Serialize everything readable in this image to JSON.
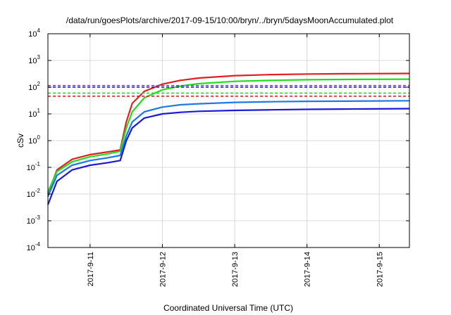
{
  "chart_data": {
    "type": "line",
    "title": "/data/run/goesPlots/archive/2017-09-15/10:00/bryn/../bryn/5daysMoonAccumulated.plot",
    "xlabel": "Coordinated Universal Time (UTC)",
    "ylabel": "cSv",
    "yscale": "log",
    "ylim_exponents": [
      -4,
      4
    ],
    "y_tick_labels": [
      {
        "base": "10",
        "exp": "-4"
      },
      {
        "base": "10",
        "exp": "-3"
      },
      {
        "base": "10",
        "exp": "-2"
      },
      {
        "base": "10",
        "exp": "-1"
      },
      {
        "base": "10",
        "exp": "0"
      },
      {
        "base": "10",
        "exp": "1"
      },
      {
        "base": "10",
        "exp": "2"
      },
      {
        "base": "10",
        "exp": "3"
      },
      {
        "base": "10",
        "exp": "4"
      }
    ],
    "x_tick_labels": [
      "2017-9-11",
      "2017-9-12",
      "2017-9-13",
      "2017-9-14",
      "2017-9-15"
    ],
    "xlim": [
      "2017-09-10 10:00",
      "2017-09-15 10:00"
    ],
    "grid": true,
    "series": [
      {
        "color": "#e02020",
        "style": "solid",
        "points": [
          [
            "2017-09-10 10:00",
            0.01
          ],
          [
            "2017-09-10 13:00",
            0.08
          ],
          [
            "2017-09-10 18:00",
            0.2
          ],
          [
            "2017-09-11 00:00",
            0.3
          ],
          [
            "2017-09-11 06:00",
            0.38
          ],
          [
            "2017-09-11 10:00",
            0.45
          ],
          [
            "2017-09-11 12:00",
            5
          ],
          [
            "2017-09-11 14:00",
            25
          ],
          [
            "2017-09-11 18:00",
            70
          ],
          [
            "2017-09-12 00:00",
            130
          ],
          [
            "2017-09-12 06:00",
            180
          ],
          [
            "2017-09-12 12:00",
            220
          ],
          [
            "2017-09-13 00:00",
            270
          ],
          [
            "2017-09-13 12:00",
            295
          ],
          [
            "2017-09-14 00:00",
            310
          ],
          [
            "2017-09-14 12:00",
            318
          ],
          [
            "2017-09-15 10:00",
            325
          ]
        ]
      },
      {
        "color": "#20dd20",
        "style": "solid",
        "points": [
          [
            "2017-09-10 10:00",
            0.012
          ],
          [
            "2017-09-10 13:00",
            0.07
          ],
          [
            "2017-09-10 18:00",
            0.16
          ],
          [
            "2017-09-11 00:00",
            0.25
          ],
          [
            "2017-09-11 06:00",
            0.32
          ],
          [
            "2017-09-11 10:00",
            0.4
          ],
          [
            "2017-09-11 12:00",
            3
          ],
          [
            "2017-09-11 14:00",
            12
          ],
          [
            "2017-09-11 18:00",
            40
          ],
          [
            "2017-09-12 00:00",
            80
          ],
          [
            "2017-09-12 06:00",
            110
          ],
          [
            "2017-09-12 12:00",
            135
          ],
          [
            "2017-09-13 00:00",
            165
          ],
          [
            "2017-09-13 12:00",
            180
          ],
          [
            "2017-09-14 00:00",
            190
          ],
          [
            "2017-09-14 12:00",
            195
          ],
          [
            "2017-09-15 10:00",
            200
          ]
        ]
      },
      {
        "color": "#1e78e6",
        "style": "solid",
        "points": [
          [
            "2017-09-10 10:00",
            0.008
          ],
          [
            "2017-09-10 13:00",
            0.05
          ],
          [
            "2017-09-10 18:00",
            0.12
          ],
          [
            "2017-09-11 00:00",
            0.18
          ],
          [
            "2017-09-11 06:00",
            0.23
          ],
          [
            "2017-09-11 10:00",
            0.28
          ],
          [
            "2017-09-11 12:00",
            1.5
          ],
          [
            "2017-09-11 14:00",
            5
          ],
          [
            "2017-09-11 18:00",
            12
          ],
          [
            "2017-09-12 00:00",
            18
          ],
          [
            "2017-09-12 06:00",
            22
          ],
          [
            "2017-09-12 12:00",
            24
          ],
          [
            "2017-09-13 00:00",
            27
          ],
          [
            "2017-09-13 12:00",
            28.5
          ],
          [
            "2017-09-14 00:00",
            29.5
          ],
          [
            "2017-09-14 12:00",
            30
          ],
          [
            "2017-09-15 10:00",
            31
          ]
        ]
      },
      {
        "color": "#1a1ad8",
        "style": "solid",
        "points": [
          [
            "2017-09-10 10:00",
            0.004
          ],
          [
            "2017-09-10 13:00",
            0.03
          ],
          [
            "2017-09-10 18:00",
            0.08
          ],
          [
            "2017-09-11 00:00",
            0.12
          ],
          [
            "2017-09-11 06:00",
            0.15
          ],
          [
            "2017-09-11 10:00",
            0.18
          ],
          [
            "2017-09-11 12:00",
            1
          ],
          [
            "2017-09-11 14:00",
            3
          ],
          [
            "2017-09-11 18:00",
            7
          ],
          [
            "2017-09-12 00:00",
            10
          ],
          [
            "2017-09-12 06:00",
            11.5
          ],
          [
            "2017-09-12 12:00",
            12.5
          ],
          [
            "2017-09-13 00:00",
            13.5
          ],
          [
            "2017-09-13 12:00",
            14.2
          ],
          [
            "2017-09-14 00:00",
            14.8
          ],
          [
            "2017-09-14 12:00",
            15.2
          ],
          [
            "2017-09-15 10:00",
            15.8
          ]
        ]
      },
      {
        "color": "#9a2ad8",
        "style": "dashed",
        "points": [
          [
            "2017-09-10 10:00",
            115
          ],
          [
            "2017-09-15 10:00",
            115
          ]
        ]
      },
      {
        "color": "#1a1ad8",
        "style": "dashed",
        "points": [
          [
            "2017-09-10 10:00",
            100
          ],
          [
            "2017-09-15 10:00",
            100
          ]
        ]
      },
      {
        "color": "#20dd20",
        "style": "dashed",
        "points": [
          [
            "2017-09-10 10:00",
            60
          ],
          [
            "2017-09-15 10:00",
            60
          ]
        ]
      },
      {
        "color": "#e02020",
        "style": "dashed",
        "points": [
          [
            "2017-09-10 10:00",
            46
          ],
          [
            "2017-09-15 10:00",
            46
          ]
        ]
      }
    ]
  }
}
